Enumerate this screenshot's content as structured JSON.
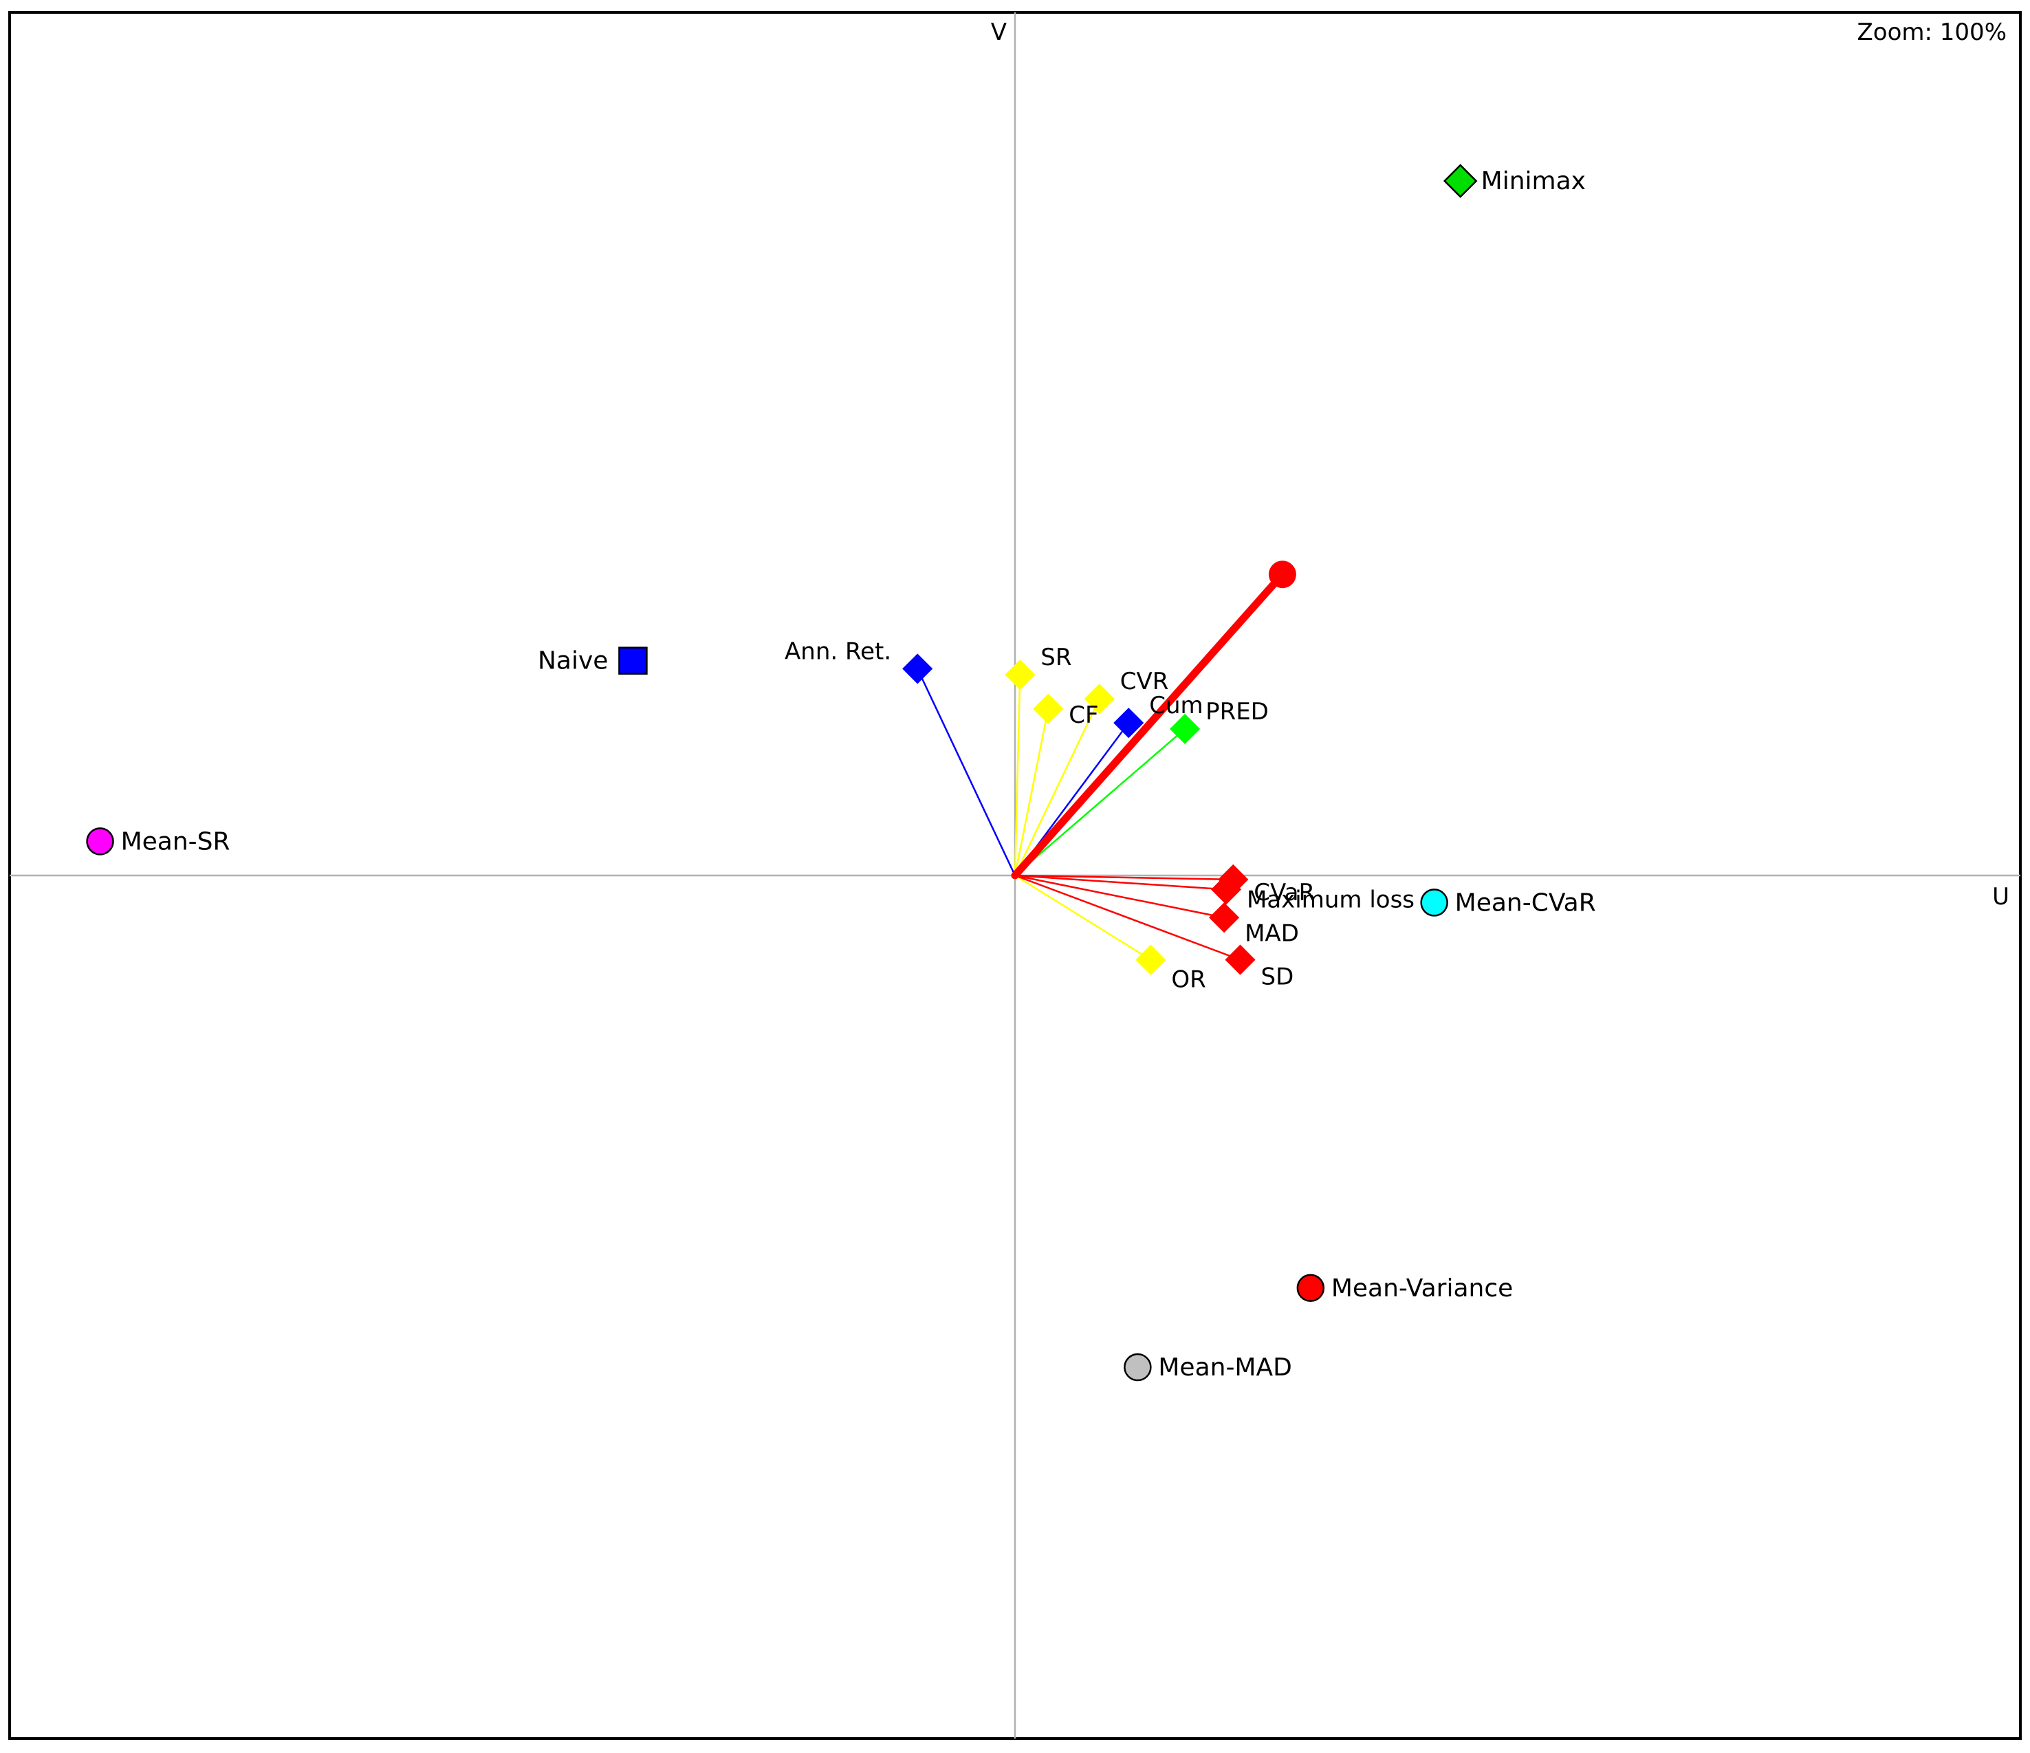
{
  "zoom_label": "Zoom: 100%",
  "chart_data": {
    "type": "scatter",
    "title": "",
    "xlabel": "U",
    "ylabel": "V",
    "xlim": [
      -1.0,
      1.0
    ],
    "ylim": [
      -0.86,
      0.86
    ],
    "grid": false,
    "axes_through_origin": true,
    "criteria": [
      {
        "label": "SR",
        "u": 0.005,
        "v": 0.2,
        "color": "#ffff00"
      },
      {
        "label": "CF",
        "u": 0.033,
        "v": 0.166,
        "color": "#ffff00"
      },
      {
        "label": "CVR",
        "u": 0.084,
        "v": 0.176,
        "color": "#ffff00"
      },
      {
        "label": "OR",
        "u": 0.135,
        "v": -0.084,
        "color": "#ffff00"
      },
      {
        "label": "Ann. Ret.",
        "u": -0.097,
        "v": 0.206,
        "color": "#0000ff"
      },
      {
        "label": "Cum",
        "u": 0.113,
        "v": 0.152,
        "color": "#0000ff"
      },
      {
        "label": "PRED",
        "u": 0.169,
        "v": 0.146,
        "color": "#00ff00"
      },
      {
        "label": "CVaR",
        "u": 0.217,
        "v": -0.004,
        "color": "#ff0000"
      },
      {
        "label": "Maximum loss",
        "u": 0.21,
        "v": -0.014,
        "color": "#ff0000"
      },
      {
        "label": "MAD",
        "u": 0.208,
        "v": -0.042,
        "color": "#ff0000"
      },
      {
        "label": "SD",
        "u": 0.224,
        "v": -0.084,
        "color": "#ff0000"
      }
    ],
    "decision_axis": {
      "u": 0.266,
      "v": 0.3,
      "color": "#ff0000"
    },
    "alternatives": [
      {
        "label": "Minimax",
        "u": 0.443,
        "v": 0.692,
        "shape": "diamond",
        "color": "#00dd00"
      },
      {
        "label": "Naive",
        "u": -0.38,
        "v": 0.214,
        "shape": "square",
        "color": "#0000ff"
      },
      {
        "label": "Mean-SR",
        "u": -0.91,
        "v": 0.034,
        "shape": "circle",
        "color": "#ff00ff"
      },
      {
        "label": "Mean-CVaR",
        "u": 0.417,
        "v": -0.027,
        "shape": "circle",
        "color": "#00ffff"
      },
      {
        "label": "Mean-Variance",
        "u": 0.294,
        "v": -0.411,
        "shape": "circle",
        "color": "#ff0000"
      },
      {
        "label": "Mean-MAD",
        "u": 0.122,
        "v": -0.49,
        "shape": "circle",
        "color": "#c0c0c0"
      }
    ]
  }
}
